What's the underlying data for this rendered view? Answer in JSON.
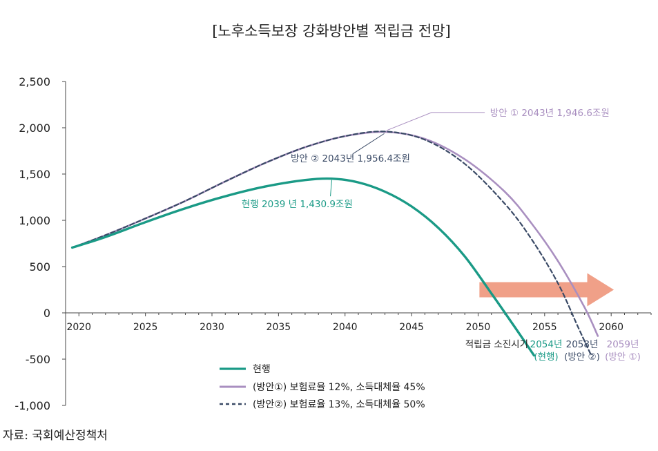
{
  "chart_data": {
    "type": "line",
    "title": "[노후소득보장 강화방안별 적립금 전망]",
    "xlabel": "",
    "ylabel": "",
    "xlim": [
      2019,
      2063
    ],
    "ylim": [
      -1000,
      2500
    ],
    "y_ticks": [
      2500,
      2000,
      1500,
      1000,
      500,
      0,
      -500,
      -1000
    ],
    "y_tick_labels": [
      "2,500",
      "2,000",
      "1,500",
      "1,000",
      "500",
      "0",
      "-500",
      "-1,000"
    ],
    "x_ticks": [
      2020,
      2025,
      2030,
      2035,
      2040,
      2045,
      2050,
      2055,
      2060
    ],
    "x_tick_labels": [
      "2020",
      "2025",
      "2030",
      "2035",
      "2040",
      "2045",
      "2050",
      "2055",
      "2060"
    ],
    "series": [
      {
        "name": "현행",
        "color": "#1a9a86",
        "style": "solid",
        "x": [
          2019.5,
          2022,
          2025,
          2028,
          2031,
          2034,
          2037,
          2039,
          2041,
          2043,
          2045,
          2047,
          2049,
          2051,
          2052.5,
          2053.5,
          2054.2
        ],
        "y": [
          705,
          820,
          980,
          1130,
          1260,
          1365,
          1435,
          1450,
          1410,
          1310,
          1150,
          920,
          610,
          210,
          -100,
          -310,
          -460
        ]
      },
      {
        "name": "(방안①) 보험료율 12%, 소득대체율 45%",
        "color": "#a98fc0",
        "style": "solid",
        "x": [
          2019.5,
          2022,
          2025,
          2028,
          2031,
          2034,
          2037,
          2040,
          2043,
          2046,
          2049,
          2052,
          2054,
          2056,
          2058,
          2059
        ],
        "y": [
          705,
          840,
          1020,
          1210,
          1420,
          1620,
          1790,
          1910,
          1955,
          1880,
          1660,
          1310,
          970,
          560,
          60,
          -250
        ]
      },
      {
        "name": "(방안②) 보험료율 13%, 소득대체율 50%",
        "color": "#3a4a66",
        "style": "dashed",
        "x": [
          2019.5,
          2022,
          2025,
          2028,
          2031,
          2034,
          2037,
          2040,
          2043,
          2046,
          2049,
          2052,
          2054,
          2056,
          2057.5,
          2058.5
        ],
        "y": [
          705,
          840,
          1020,
          1210,
          1420,
          1620,
          1790,
          1910,
          1960,
          1870,
          1610,
          1180,
          800,
          320,
          -150,
          -460
        ]
      }
    ],
    "annotations": [
      {
        "text": "방안 ① 2043년 1,946.6조원",
        "x": 2043,
        "y": 1955,
        "color": "#a98fc0"
      },
      {
        "text": "방안 ② 2043년 1,956.4조원",
        "x": 2043,
        "y": 1960,
        "color": "#3a4a66"
      },
      {
        "text": "현행 2039 년 1,430.9조원",
        "x": 2039,
        "y": 1450,
        "color": "#1a9a86"
      }
    ],
    "arrow_color": "#f0a088",
    "depletion_labels": {
      "prefix": "적립금 소진시기",
      "items": [
        {
          "year": "2054년",
          "name": "(현행)",
          "color": "#1a9a86"
        },
        {
          "year": "2058년",
          "name": "(방안 ②)",
          "color": "#3a4a66"
        },
        {
          "year": "2059년",
          "name": "(방안 ①)",
          "color": "#a98fc0"
        }
      ]
    },
    "source": "자료: 국회예산정책처"
  }
}
